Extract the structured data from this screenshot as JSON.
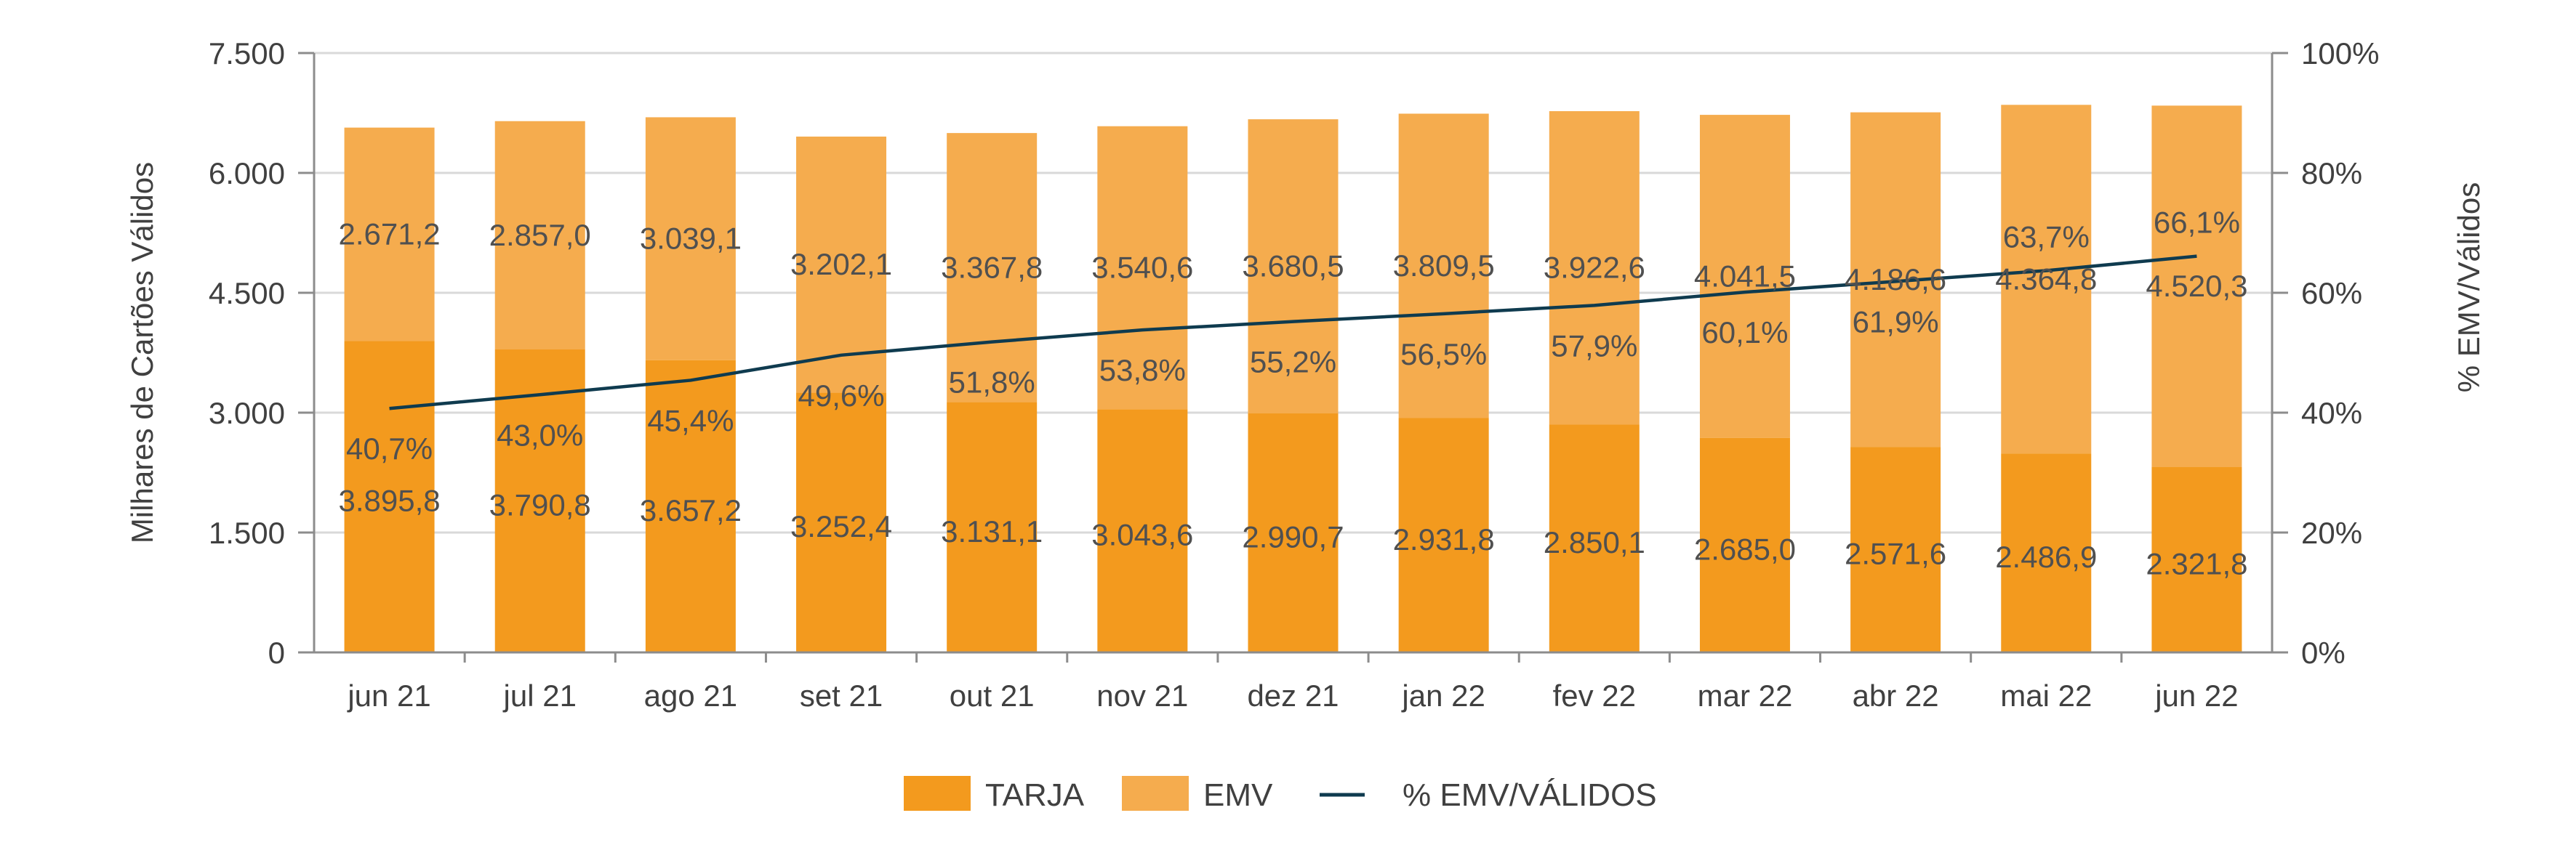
{
  "chart_data": {
    "type": "bar",
    "stacked": true,
    "categories": [
      "jun 21",
      "jul 21",
      "ago 21",
      "set 21",
      "out 21",
      "nov 21",
      "dez 21",
      "jan 22",
      "fev 22",
      "mar 22",
      "abr 22",
      "mai 22",
      "jun 22"
    ],
    "series": [
      {
        "name": "TARJA",
        "kind": "bar",
        "axis": "left",
        "color": "#F39A1E",
        "values": [
          3895.8,
          3790.8,
          3657.2,
          3252.4,
          3131.1,
          3043.6,
          2990.7,
          2931.8,
          2850.1,
          2685.0,
          2571.6,
          2486.9,
          2321.8
        ],
        "labels": [
          "3.895,8",
          "3.790,8",
          "3.657,2",
          "3.252,4",
          "3.131,1",
          "3.043,6",
          "2.990,7",
          "2.931,8",
          "2.850,1",
          "2.685,0",
          "2.571,6",
          "2.486,9",
          "2.321,8"
        ]
      },
      {
        "name": "EMV",
        "kind": "bar",
        "axis": "left",
        "color": "#F5AC4E",
        "values": [
          2671.2,
          2857.0,
          3039.1,
          3202.1,
          3367.8,
          3540.6,
          3680.5,
          3809.5,
          3922.6,
          4041.5,
          4186.6,
          4364.8,
          4520.3
        ],
        "labels": [
          "2.671,2",
          "2.857,0",
          "3.039,1",
          "3.202,1",
          "3.367,8",
          "3.540,6",
          "3.680,5",
          "3.809,5",
          "3.922,6",
          "4.041,5",
          "4.186,6",
          "4.364,8",
          "4.520,3"
        ]
      },
      {
        "name": "% EMV/VÁLIDOS",
        "kind": "line",
        "axis": "right",
        "color": "#0F3B4F",
        "values": [
          40.7,
          43.0,
          45.4,
          49.6,
          51.8,
          53.8,
          55.2,
          56.5,
          57.9,
          60.1,
          61.9,
          63.7,
          66.1
        ],
        "labels": [
          "40,7%",
          "43,0%",
          "45,4%",
          "49,6%",
          "51,8%",
          "53,8%",
          "55,2%",
          "56,5%",
          "57,9%",
          "60,1%",
          "61,9%",
          "63,7%",
          "66,1%"
        ]
      }
    ],
    "ylabel": "Milhares de Cartões Válidos",
    "y2label": "% EMV/Válidos",
    "ylim": [
      0,
      7500
    ],
    "y2lim": [
      0,
      100
    ],
    "yticks": [
      "0",
      "1.500",
      "3.000",
      "4.500",
      "6.000",
      "7.500"
    ],
    "y2ticks": [
      "0%",
      "20%",
      "40%",
      "60%",
      "80%",
      "100%"
    ],
    "grid": true,
    "legend_position": "bottom",
    "legend": [
      "TARJA",
      "EMV",
      "% EMV/VÁLIDOS"
    ]
  }
}
